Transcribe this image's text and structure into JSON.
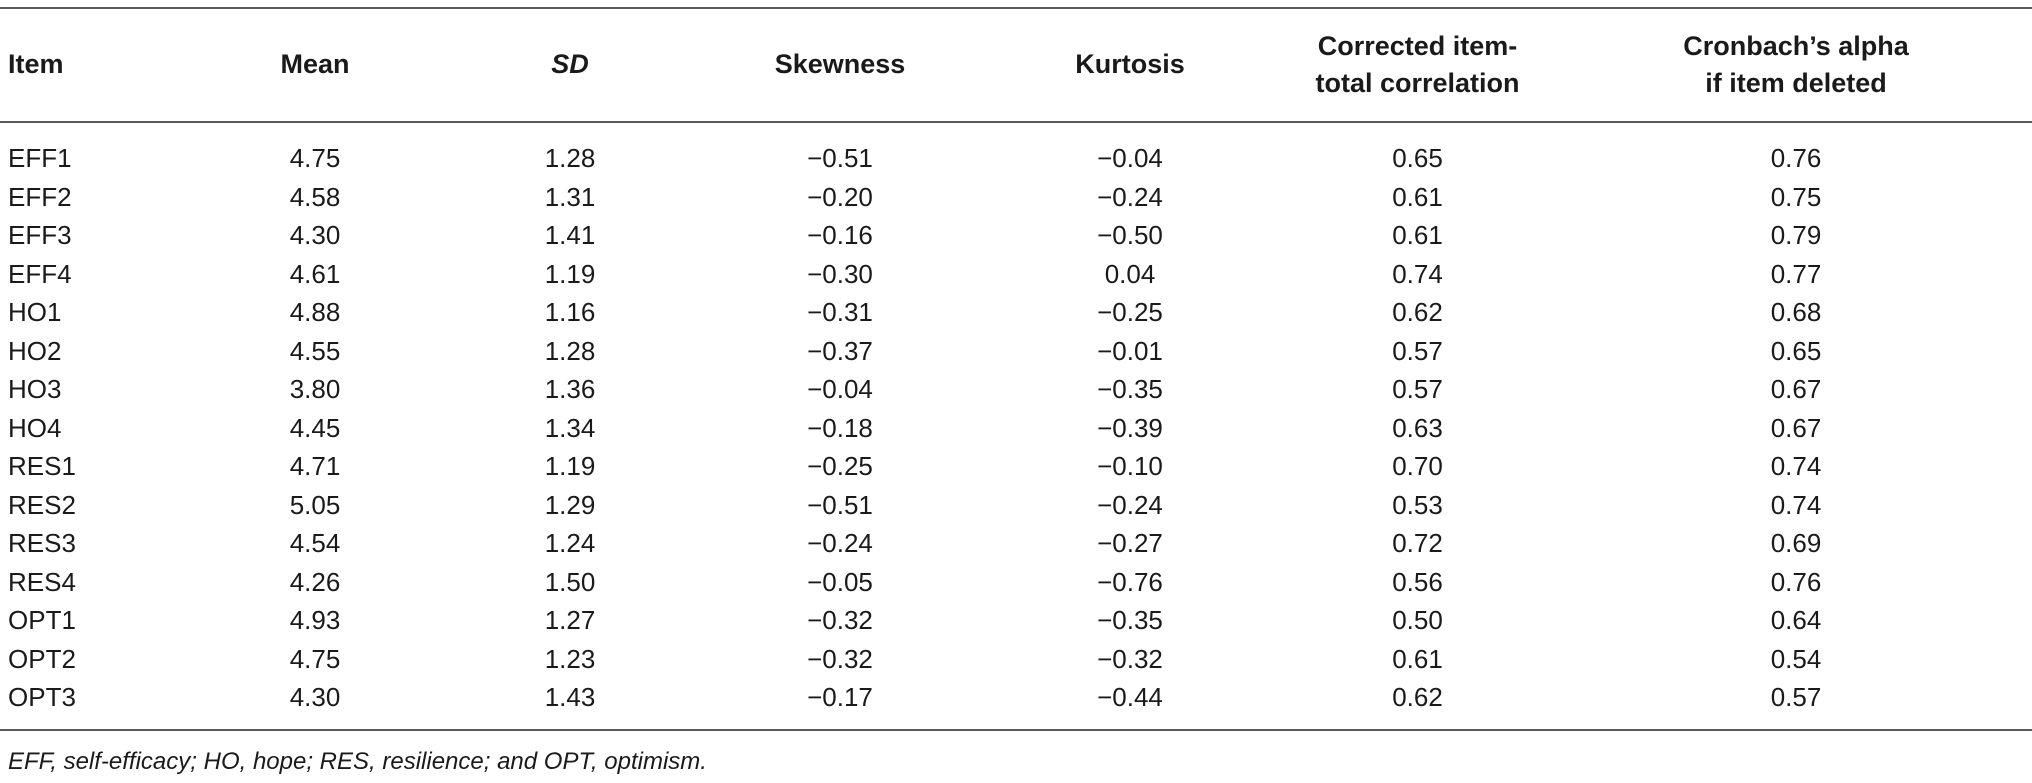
{
  "table": {
    "headers": [
      "Item",
      "Mean",
      "SD",
      "Skewness",
      "Kurtosis",
      "Corrected item-total correlation",
      "Cronbach’s alpha if item deleted"
    ],
    "rows": [
      [
        "EFF1",
        "4.75",
        "1.28",
        "−0.51",
        "−0.04",
        "0.65",
        "0.76"
      ],
      [
        "EFF2",
        "4.58",
        "1.31",
        "−0.20",
        "−0.24",
        "0.61",
        "0.75"
      ],
      [
        "EFF3",
        "4.30",
        "1.41",
        "−0.16",
        "−0.50",
        "0.61",
        "0.79"
      ],
      [
        "EFF4",
        "4.61",
        "1.19",
        "−0.30",
        "0.04",
        "0.74",
        "0.77"
      ],
      [
        "HO1",
        "4.88",
        "1.16",
        "−0.31",
        "−0.25",
        "0.62",
        "0.68"
      ],
      [
        "HO2",
        "4.55",
        "1.28",
        "−0.37",
        "−0.01",
        "0.57",
        "0.65"
      ],
      [
        "HO3",
        "3.80",
        "1.36",
        "−0.04",
        "−0.35",
        "0.57",
        "0.67"
      ],
      [
        "HO4",
        "4.45",
        "1.34",
        "−0.18",
        "−0.39",
        "0.63",
        "0.67"
      ],
      [
        "RES1",
        "4.71",
        "1.19",
        "−0.25",
        "−0.10",
        "0.70",
        "0.74"
      ],
      [
        "RES2",
        "5.05",
        "1.29",
        "−0.51",
        "−0.24",
        "0.53",
        "0.74"
      ],
      [
        "RES3",
        "4.54",
        "1.24",
        "−0.24",
        "−0.27",
        "0.72",
        "0.69"
      ],
      [
        "RES4",
        "4.26",
        "1.50",
        "−0.05",
        "−0.76",
        "0.56",
        "0.76"
      ],
      [
        "OPT1",
        "4.93",
        "1.27",
        "−0.32",
        "−0.35",
        "0.50",
        "0.64"
      ],
      [
        "OPT2",
        "4.75",
        "1.23",
        "−0.32",
        "−0.32",
        "0.61",
        "0.54"
      ],
      [
        "OPT3",
        "4.30",
        "1.43",
        "−0.17",
        "−0.44",
        "0.62",
        "0.57"
      ]
    ]
  },
  "footnote": "EFF, self-efficacy; HO, hope; RES, resilience; and OPT, optimism."
}
